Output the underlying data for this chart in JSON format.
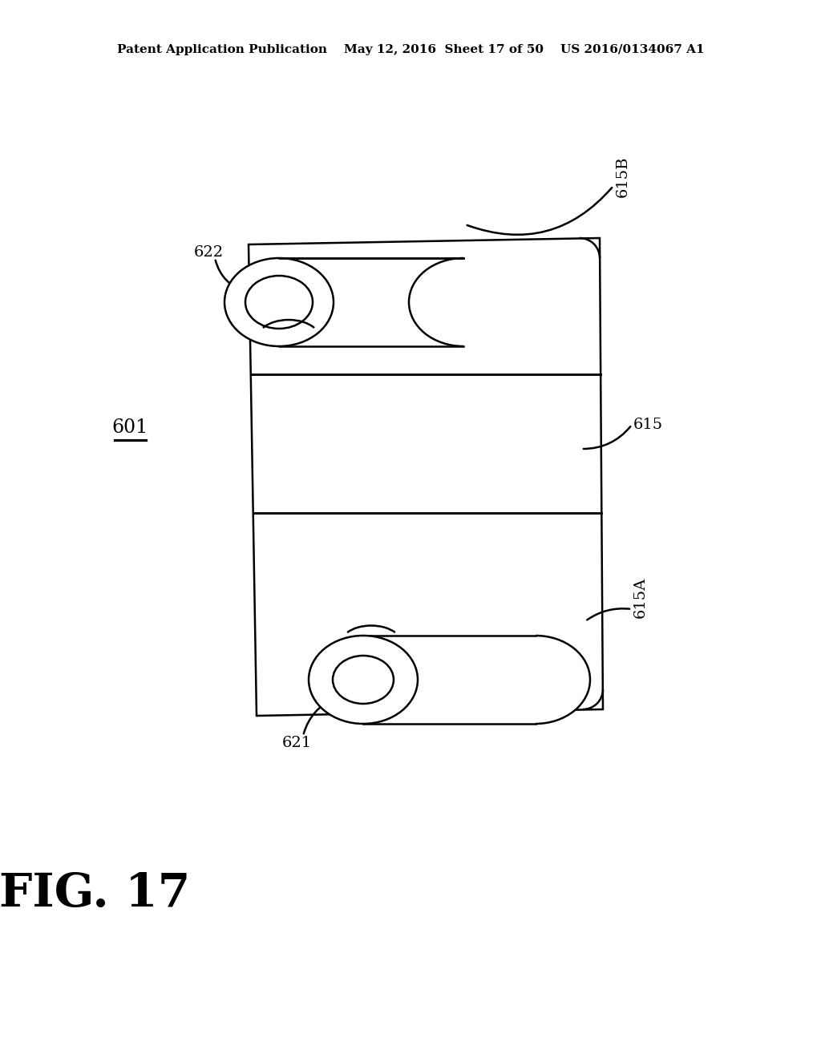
{
  "bg_color": "#ffffff",
  "line_color": "#000000",
  "header_text": "Patent Application Publication    May 12, 2016  Sheet 17 of 50    US 2016/0134067 A1",
  "fig_label": "FIG. 17",
  "ref_601": "601",
  "ref_615A": "615A",
  "ref_615B": "615B",
  "ref_615": "615",
  "ref_621": "621",
  "ref_622": "622",
  "lw": 1.8,
  "header_fontsize": 11,
  "figlabel_fontsize": 42,
  "ref_fontsize": 14
}
